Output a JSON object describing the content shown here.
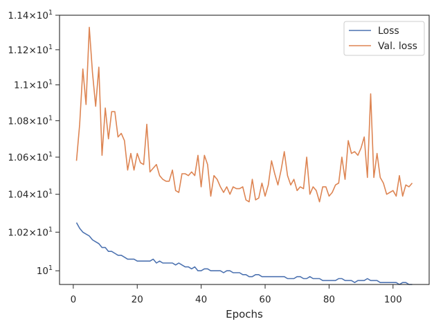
{
  "chart_data": {
    "type": "line",
    "title": "",
    "xlabel": "Epochs",
    "ylabel": "",
    "yscale": "log",
    "xlim": [
      -4.3,
      111.3
    ],
    "ylim": [
      9.93,
      11.4
    ],
    "grid": false,
    "legend_position": "top-right",
    "x_ticks": [
      0,
      20,
      40,
      60,
      80,
      100
    ],
    "x_tick_labels": [
      "0",
      "20",
      "40",
      "60",
      "80",
      "100"
    ],
    "y_ticks": [
      10.0,
      10.2,
      10.4,
      10.6,
      10.8,
      11.0,
      11.2,
      11.4
    ],
    "y_tick_labels": [
      {
        "base": "10",
        "exp": "1",
        "coef": ""
      },
      {
        "base": "10",
        "exp": "1",
        "coef": "1.02"
      },
      {
        "base": "10",
        "exp": "1",
        "coef": "1.04"
      },
      {
        "base": "10",
        "exp": "1",
        "coef": "1.06"
      },
      {
        "base": "10",
        "exp": "1",
        "coef": "1.08"
      },
      {
        "base": "10",
        "exp": "1",
        "coef": "1.1"
      },
      {
        "base": "10",
        "exp": "1",
        "coef": "1.12"
      },
      {
        "base": "10",
        "exp": "1",
        "coef": "1.14"
      }
    ],
    "series": [
      {
        "name": "Loss",
        "color": "#4c72b0",
        "x_start": 1,
        "values": [
          10.25,
          10.22,
          10.2,
          10.19,
          10.18,
          10.16,
          10.15,
          10.14,
          10.12,
          10.12,
          10.1,
          10.1,
          10.09,
          10.08,
          10.08,
          10.07,
          10.06,
          10.06,
          10.06,
          10.05,
          10.05,
          10.05,
          10.05,
          10.05,
          10.06,
          10.04,
          10.05,
          10.04,
          10.04,
          10.04,
          10.04,
          10.03,
          10.04,
          10.03,
          10.02,
          10.02,
          10.01,
          10.02,
          10.0,
          10.0,
          10.01,
          10.01,
          10.0,
          10.0,
          10.0,
          10.0,
          9.99,
          10.0,
          10.0,
          9.99,
          9.99,
          9.99,
          9.98,
          9.98,
          9.97,
          9.97,
          9.98,
          9.98,
          9.97,
          9.97,
          9.97,
          9.97,
          9.97,
          9.97,
          9.97,
          9.97,
          9.96,
          9.96,
          9.96,
          9.97,
          9.97,
          9.96,
          9.96,
          9.97,
          9.96,
          9.96,
          9.96,
          9.95,
          9.95,
          9.95,
          9.95,
          9.95,
          9.96,
          9.96,
          9.95,
          9.95,
          9.95,
          9.94,
          9.95,
          9.95,
          9.95,
          9.96,
          9.95,
          9.95,
          9.95,
          9.94,
          9.94,
          9.94,
          9.94,
          9.94,
          9.94,
          9.93,
          9.94,
          9.94,
          9.93,
          9.93
        ]
      },
      {
        "name": "Val. loss",
        "color": "#dd8452",
        "x_start": 1,
        "values": [
          10.58,
          10.78,
          11.09,
          10.89,
          11.33,
          11.07,
          10.88,
          11.1,
          10.61,
          10.87,
          10.7,
          10.85,
          10.85,
          10.71,
          10.73,
          10.69,
          10.53,
          10.62,
          10.53,
          10.62,
          10.57,
          10.56,
          10.78,
          10.52,
          10.54,
          10.56,
          10.5,
          10.48,
          10.47,
          10.47,
          10.53,
          10.42,
          10.41,
          10.51,
          10.51,
          10.5,
          10.52,
          10.5,
          10.61,
          10.44,
          10.61,
          10.56,
          10.39,
          10.5,
          10.48,
          10.44,
          10.41,
          10.44,
          10.4,
          10.44,
          10.43,
          10.43,
          10.44,
          10.37,
          10.36,
          10.48,
          10.37,
          10.38,
          10.46,
          10.39,
          10.45,
          10.58,
          10.51,
          10.45,
          10.53,
          10.63,
          10.5,
          10.45,
          10.48,
          10.42,
          10.44,
          10.43,
          10.6,
          10.4,
          10.44,
          10.42,
          10.36,
          10.44,
          10.44,
          10.39,
          10.41,
          10.45,
          10.46,
          10.6,
          10.48,
          10.69,
          10.62,
          10.63,
          10.61,
          10.65,
          10.71,
          10.49,
          10.95,
          10.49,
          10.62,
          10.49,
          10.46,
          10.4,
          10.41,
          10.42,
          10.39,
          10.5,
          10.39,
          10.45,
          10.44,
          10.46
        ]
      }
    ]
  }
}
